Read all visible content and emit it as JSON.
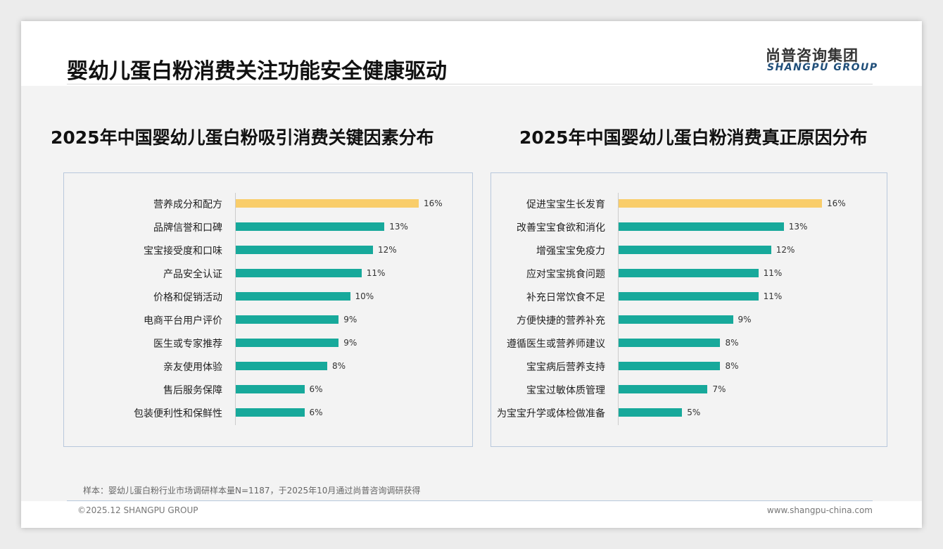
{
  "header": {
    "title": "婴幼儿蛋白粉消费关注功能安全健康驱动",
    "logo_cn": "尚普咨询集团",
    "logo_en": "SHANGPU GROUP"
  },
  "chart_data": [
    {
      "type": "bar",
      "orientation": "horizontal",
      "title": "2025年中国婴幼儿蛋白粉吸引消费关键因素分布",
      "categories": [
        "营养成分和配方",
        "品牌信誉和口碑",
        "宝宝接受度和口味",
        "产品安全认证",
        "价格和促销活动",
        "电商平台用户评价",
        "医生或专家推荐",
        "亲友使用体验",
        "售后服务保障",
        "包装便利性和保鲜性"
      ],
      "values": [
        16,
        13,
        12,
        11,
        10,
        9,
        9,
        8,
        6,
        6
      ],
      "labels": [
        "16%",
        "13%",
        "12%",
        "11%",
        "10%",
        "9%",
        "9%",
        "8%",
        "6%",
        "6%"
      ],
      "highlight_index": 0
    },
    {
      "type": "bar",
      "orientation": "horizontal",
      "title": "2025年中国婴幼儿蛋白粉消费真正原因分布",
      "categories": [
        "促进宝宝生长发育",
        "改善宝宝食欲和消化",
        "增强宝宝免疫力",
        "应对宝宝挑食问题",
        "补充日常饮食不足",
        "方便快捷的营养补充",
        "遵循医生或营养师建议",
        "宝宝病后营养支持",
        "宝宝过敏体质管理",
        "为宝宝升学或体检做准备"
      ],
      "values": [
        16,
        13,
        12,
        11,
        11,
        9,
        8,
        8,
        7,
        5
      ],
      "labels": [
        "16%",
        "13%",
        "12%",
        "11%",
        "11%",
        "9%",
        "8%",
        "8%",
        "7%",
        "5%"
      ],
      "highlight_index": 0
    }
  ],
  "colors": {
    "bar": "#17a99b",
    "highlight": "#f9cd6a"
  },
  "footer": {
    "note": "样本：婴幼儿蛋白粉行业市场调研样本量N=1187，于2025年10月通过尚普咨询调研获得",
    "copyright": "©2025.12 SHANGPU GROUP",
    "url": "www.shangpu-china.com"
  }
}
